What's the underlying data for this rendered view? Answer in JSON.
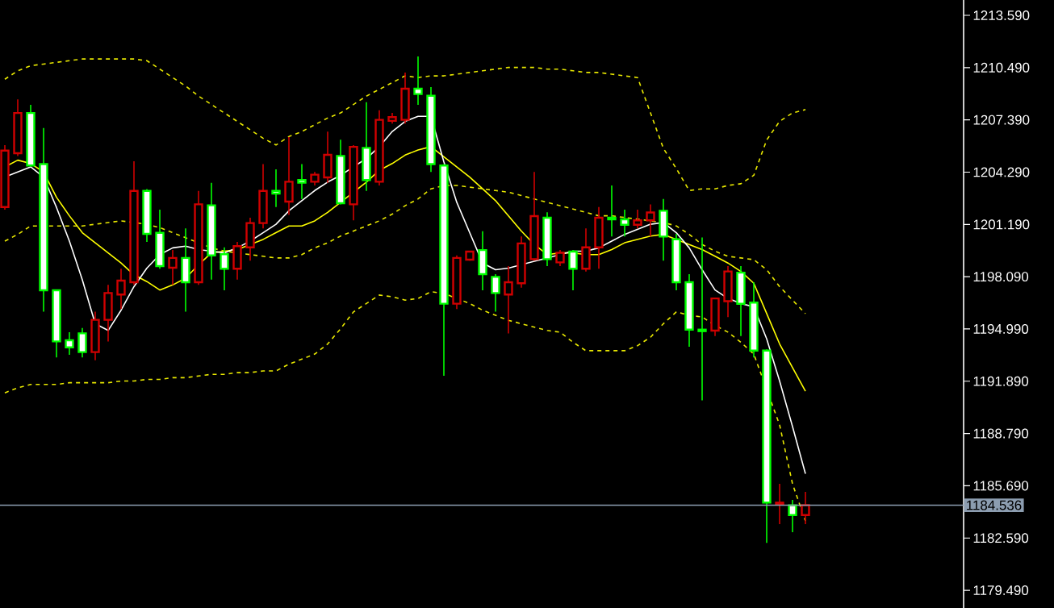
{
  "chart_data": {
    "type": "candlestick",
    "categories": [
      null,
      null,
      null,
      null,
      null,
      null,
      null,
      null,
      null,
      null,
      null,
      null,
      null,
      null,
      null,
      null,
      null,
      null,
      null,
      null,
      null,
      null,
      null,
      null,
      null,
      null,
      null,
      null,
      null,
      null,
      null,
      null,
      null,
      null,
      null,
      null,
      null,
      null,
      null,
      null,
      null,
      null,
      null,
      null,
      null,
      null,
      null,
      null,
      null,
      null,
      null,
      null,
      null,
      null,
      null,
      null,
      null,
      null,
      null,
      null,
      null,
      null,
      null
    ],
    "ohlc": [
      [
        1202.22,
        1205.89,
        1202.06,
        1205.57
      ],
      [
        1205.41,
        1208.6,
        1205.25,
        1207.8
      ],
      [
        1207.8,
        1208.28,
        1204.62,
        1204.68
      ],
      [
        1204.77,
        1206.91,
        1196.01,
        1197.28
      ],
      [
        1197.28,
        1197.28,
        1193.3,
        1194.25
      ],
      [
        1194.32,
        1194.8,
        1193.46,
        1193.9
      ],
      [
        1194.73,
        1195.05,
        1193.3,
        1193.62
      ],
      [
        1193.62,
        1196.01,
        1193.14,
        1195.53
      ],
      [
        1195.53,
        1197.6,
        1194.25,
        1197.12
      ],
      [
        1197.03,
        1198.56,
        1196.17,
        1197.86
      ],
      [
        1197.76,
        1204.93,
        1197.6,
        1203.18
      ],
      [
        1203.18,
        1203.28,
        1200.15,
        1200.63
      ],
      [
        1200.69,
        1202.06,
        1198.56,
        1198.72
      ],
      [
        1198.62,
        1199.67,
        1197.6,
        1199.2
      ],
      [
        1199.2,
        1200.95,
        1196.01,
        1197.76
      ],
      [
        1197.76,
        1203.18,
        1197.6,
        1202.38
      ],
      [
        1202.32,
        1203.66,
        1197.92,
        1199.35
      ],
      [
        1199.42,
        1199.83,
        1197.28,
        1198.56
      ],
      [
        1198.56,
        1200.15,
        1197.92,
        1199.9
      ],
      [
        1199.83,
        1201.59,
        1199.04,
        1201.27
      ],
      [
        1201.27,
        1204.77,
        1200.95,
        1203.18
      ],
      [
        1203.18,
        1204.46,
        1202.22,
        1203.02
      ],
      [
        1202.54,
        1206.37,
        1201.75,
        1203.72
      ],
      [
        1203.82,
        1204.77,
        1202.7,
        1203.66
      ],
      [
        1203.72,
        1204.3,
        1203.5,
        1204.14
      ],
      [
        1203.98,
        1206.69,
        1203.66,
        1205.32
      ],
      [
        1205.25,
        1206.21,
        1202.38,
        1202.45
      ],
      [
        1202.38,
        1205.89,
        1201.43,
        1205.79
      ],
      [
        1205.73,
        1208.44,
        1203.18,
        1203.82
      ],
      [
        1203.72,
        1207.96,
        1203.5,
        1207.39
      ],
      [
        1207.33,
        1207.8,
        1207.17,
        1207.55
      ],
      [
        1207.39,
        1210.19,
        1207.17,
        1209.24
      ],
      [
        1209.24,
        1211.15,
        1208.28,
        1208.92
      ],
      [
        1208.82,
        1209.33,
        1204.3,
        1204.77
      ],
      [
        1204.68,
        1204.77,
        1192.21,
        1196.49
      ],
      [
        1196.49,
        1199.35,
        1196.17,
        1199.2
      ],
      [
        1199.1,
        1199.58,
        1199.04,
        1199.58
      ],
      [
        1199.67,
        1200.79,
        1197.28,
        1198.24
      ],
      [
        1198.08,
        1198.24,
        1196.01,
        1197.12
      ],
      [
        1197.03,
        1198.72,
        1194.73,
        1197.76
      ],
      [
        1197.7,
        1200.47,
        1197.44,
        1200.06
      ],
      [
        1199.13,
        1204.3,
        1199.04,
        1201.68
      ],
      [
        1201.59,
        1201.91,
        1198.72,
        1199.13
      ],
      [
        1198.94,
        1199.67,
        1198.72,
        1199.51
      ],
      [
        1199.58,
        1199.67,
        1197.28,
        1198.56
      ],
      [
        1198.56,
        1200.95,
        1198.4,
        1199.83
      ],
      [
        1199.83,
        1202.22,
        1198.56,
        1201.59
      ],
      [
        1201.59,
        1203.5,
        1200.47,
        1201.49
      ],
      [
        1201.49,
        1202.06,
        1200.47,
        1201.17
      ],
      [
        1201.17,
        1202.06,
        1200.95,
        1201.43
      ],
      [
        1201.43,
        1202.38,
        1200.47,
        1201.9
      ],
      [
        1202.0,
        1202.7,
        1199.04,
        1200.47
      ],
      [
        1200.31,
        1200.63,
        1197.28,
        1197.76
      ],
      [
        1197.76,
        1198.24,
        1193.93,
        1194.95
      ],
      [
        1194.95,
        1200.41,
        1190.75,
        1194.86
      ],
      [
        1194.89,
        1196.8,
        1194.57,
        1196.8
      ],
      [
        1196.64,
        1198.72,
        1195.69,
        1198.4
      ],
      [
        1198.33,
        1198.72,
        1194.57,
        1196.48
      ],
      [
        1196.55,
        1197.76,
        1193.3,
        1193.71
      ],
      [
        1193.71,
        1193.78,
        1182.3,
        1184.69
      ],
      [
        1184.59,
        1185.8,
        1183.41,
        1184.69
      ],
      [
        1184.53,
        1184.85,
        1182.93,
        1183.95
      ],
      [
        1183.95,
        1185.33,
        1183.41,
        1184.54
      ]
    ],
    "colors": [
      "#d00000",
      "#d00000",
      "#00ff00",
      "#00ff00",
      "#00ff00",
      "#00ff00",
      "#00ff00",
      "#d00000",
      "#d00000",
      "#d00000",
      "#d00000",
      "#00ff00",
      "#00ff00",
      "#d00000",
      "#00ff00",
      "#d00000",
      "#00ff00",
      "#00ff00",
      "#d00000",
      "#d00000",
      "#d00000",
      "#00ff00",
      "#d00000",
      "#00ff00",
      "#d00000",
      "#d00000",
      "#00ff00",
      "#d00000",
      "#00ff00",
      "#d00000",
      "#d00000",
      "#d00000",
      "#00ff00",
      "#00ff00",
      "#00ff00",
      "#d00000",
      "#d00000",
      "#00ff00",
      "#00ff00",
      "#d00000",
      "#d00000",
      "#d00000",
      "#00ff00",
      "#d00000",
      "#00ff00",
      "#d00000",
      "#d00000",
      "#00ff00",
      "#00ff00",
      "#d00000",
      "#d00000",
      "#00ff00",
      "#00ff00",
      "#00ff00",
      "#00ff00",
      "#d00000",
      "#d00000",
      "#00ff00",
      "#00ff00",
      "#00ff00",
      "#d00000",
      "#00ff00",
      "#d00000"
    ],
    "series": [
      {
        "type": "line",
        "color": "#e8e800",
        "line_style": "dashed",
        "values": [
          1209.8,
          1210.3,
          1210.6,
          1210.7,
          1210.8,
          1210.9,
          1211.0,
          1211.0,
          1211.0,
          1211.0,
          1211.0,
          1210.9,
          1210.4,
          1209.9,
          1209.4,
          1208.8,
          1208.3,
          1207.8,
          1207.3,
          1206.8,
          1206.3,
          1205.9,
          1206.4,
          1206.7,
          1207.1,
          1207.5,
          1207.8,
          1208.3,
          1208.8,
          1209.2,
          1209.6,
          1210.0,
          1209.9,
          1210.0,
          1210.0,
          1210.1,
          1210.2,
          1210.3,
          1210.4,
          1210.5,
          1210.5,
          1210.5,
          1210.4,
          1210.4,
          1210.3,
          1210.2,
          1210.2,
          1210.1,
          1210.0,
          1209.9,
          1207.8,
          1205.7,
          1204.5,
          1203.2,
          1203.3,
          1203.3,
          1203.5,
          1203.6,
          1204.1,
          1206.2,
          1207.3,
          1207.8,
          1208.0
        ]
      },
      {
        "type": "line",
        "color": "#e8e800",
        "line_style": "dashed",
        "values": [
          1200.2,
          1200.6,
          1201.1,
          1201.1,
          1201.1,
          1201.1,
          1201.1,
          1201.2,
          1201.3,
          1201.4,
          1201.3,
          1201.2,
          1201.0,
          1200.7,
          1200.4,
          1200.1,
          1199.8,
          1199.6,
          1199.5,
          1199.4,
          1199.3,
          1199.2,
          1199.2,
          1199.4,
          1199.8,
          1200.1,
          1200.5,
          1200.8,
          1201.1,
          1201.4,
          1201.8,
          1202.3,
          1202.7,
          1203.3,
          1203.5,
          1203.5,
          1203.4,
          1203.3,
          1203.2,
          1203.1,
          1202.9,
          1202.7,
          1202.5,
          1202.3,
          1202.1,
          1201.9,
          1201.7,
          1201.7,
          1201.6,
          1201.5,
          1201.4,
          1201.3,
          1201.1,
          1200.6,
          1200.0,
          1199.6,
          1199.3,
          1199.2,
          1199.1,
          1198.5,
          1197.5,
          1196.7,
          1195.9
        ]
      },
      {
        "type": "line",
        "color": "#e8e800",
        "line_style": "dashed",
        "values": [
          1191.2,
          1191.5,
          1191.7,
          1191.7,
          1191.7,
          1191.8,
          1191.8,
          1191.8,
          1191.8,
          1191.9,
          1191.9,
          1192.0,
          1192.0,
          1192.1,
          1192.1,
          1192.2,
          1192.3,
          1192.3,
          1192.4,
          1192.4,
          1192.5,
          1192.5,
          1192.9,
          1193.2,
          1193.5,
          1194.1,
          1195.0,
          1196.0,
          1196.5,
          1197.0,
          1196.9,
          1196.7,
          1196.8,
          1197.2,
          1197.1,
          1196.8,
          1196.5,
          1196.1,
          1195.8,
          1195.5,
          1195.3,
          1195.1,
          1194.9,
          1194.8,
          1194.2,
          1193.7,
          1193.7,
          1193.7,
          1193.7,
          1194.0,
          1194.5,
          1195.3,
          1196.0,
          1195.8,
          1195.7,
          1195.2,
          1194.8,
          1194.2,
          1193.5,
          null,
          1189.3,
          1185.8,
          1183.6
        ]
      },
      {
        "type": "line",
        "color": "#ffff00",
        "values": [
          1204.6,
          1205.0,
          1204.8,
          1204.3,
          1202.8,
          1201.7,
          1200.7,
          1200.1,
          1199.5,
          1198.9,
          1198.2,
          1197.8,
          1197.3,
          1197.6,
          1198.0,
          1198.8,
          1199.5,
          1199.6,
          1199.7,
          1200.0,
          1200.3,
          1200.7,
          1201.1,
          1201.1,
          1201.4,
          1201.9,
          1202.5,
          1203.1,
          1203.7,
          1204.4,
          1204.8,
          1205.3,
          1205.6,
          1205.8,
          1205.2,
          1204.6,
          1204.0,
          1203.3,
          1202.6,
          1201.7,
          1200.8,
          1200.0,
          1199.4,
          1199.5,
          1199.5,
          1199.4,
          1199.4,
          1199.7,
          1200.1,
          1200.3,
          1200.5,
          1200.6,
          1200.3,
          1200.0,
          1199.7,
          1199.3,
          1198.9,
          1198.4,
          1197.7,
          1195.9,
          1194.1,
          1192.7,
          1191.3
        ]
      },
      {
        "type": "line",
        "color": "#ffffff",
        "values": [
          1204.0,
          1204.3,
          1204.6,
          1204.0,
          1202.2,
          1200.2,
          1197.9,
          1195.3,
          1194.9,
          1196.1,
          1197.5,
          1198.6,
          1199.4,
          1199.8,
          1199.9,
          1199.7,
          1199.6,
          1199.5,
          1199.8,
          1200.2,
          1200.7,
          1201.2,
          1202.0,
          1202.6,
          1203.2,
          1203.7,
          1204.1,
          1204.6,
          1205.1,
          1205.8,
          1206.7,
          1207.3,
          1207.6,
          1207.6,
          1204.9,
          1202.5,
          1200.7,
          1198.9,
          1198.5,
          1198.6,
          1198.8,
          1199.0,
          1199.2,
          1199.4,
          1199.6,
          1199.6,
          1199.8,
          1200.2,
          1200.6,
          1200.9,
          1201.2,
          1201.3,
          1200.7,
          1199.8,
          1198.5,
          1197.3,
          1196.8,
          1196.5,
          1196.3,
          1194.4,
          1191.9,
          1189.2,
          1186.4
        ]
      }
    ],
    "ylim": [
      1178.44,
      1214.5
    ],
    "yticks": [
      {
        "value": 1179.49,
        "label": "1179.490"
      },
      {
        "value": 1182.59,
        "label": "1182.590"
      },
      {
        "value": 1185.69,
        "label": "1185.690"
      },
      {
        "value": 1188.79,
        "label": "1188.790"
      },
      {
        "value": 1191.89,
        "label": "1191.890"
      },
      {
        "value": 1194.99,
        "label": "1194.990"
      },
      {
        "value": 1198.09,
        "label": "1198.090"
      },
      {
        "value": 1201.19,
        "label": "1201.190"
      },
      {
        "value": 1204.29,
        "label": "1204.290"
      },
      {
        "value": 1207.39,
        "label": "1207.390"
      },
      {
        "value": 1210.49,
        "label": "1210.490"
      },
      {
        "value": 1213.59,
        "label": "1213.590"
      }
    ],
    "tick_labels": "y",
    "ref_lines": [
      {
        "axis": "y",
        "value": 1184.536,
        "label": "1184.536",
        "color": "#8c9db0"
      }
    ]
  }
}
